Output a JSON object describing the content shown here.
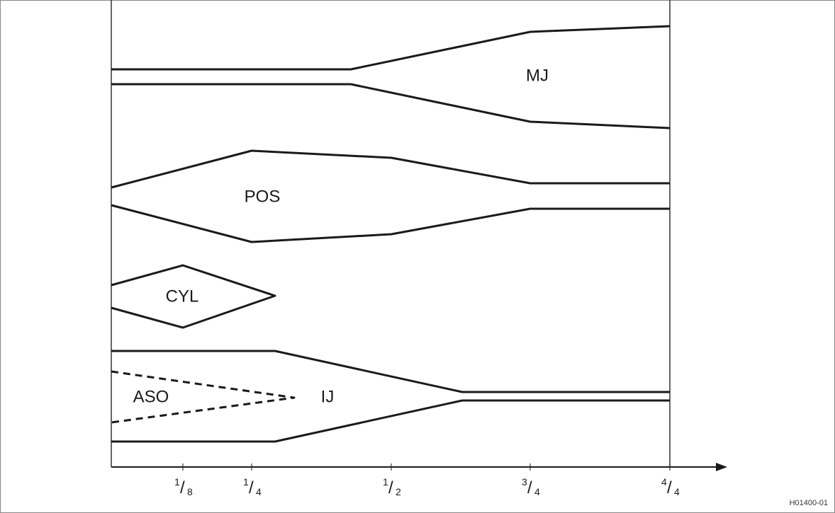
{
  "labels": {
    "mj": "MJ",
    "pos": "POS",
    "cyl": "CYL",
    "aso": "ASO",
    "ij": "IJ"
  },
  "axis_ticks": [
    {
      "numerator": "1",
      "denominator": "8"
    },
    {
      "numerator": "1",
      "denominator": "4"
    },
    {
      "numerator": "1",
      "denominator": "2"
    },
    {
      "numerator": "3",
      "denominator": "4"
    },
    {
      "numerator": "4",
      "denominator": "4"
    }
  ],
  "figure_id": "H01400-01"
}
